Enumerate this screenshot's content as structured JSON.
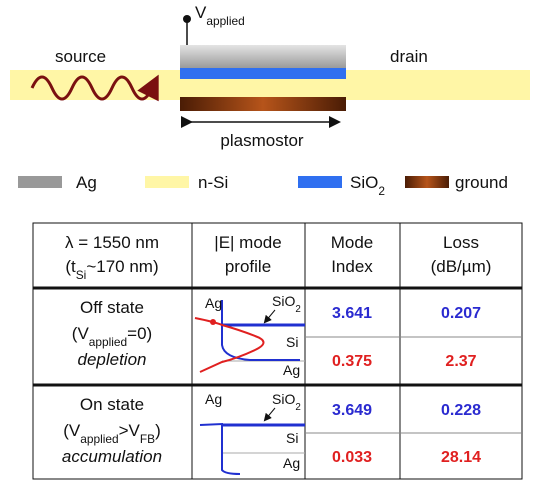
{
  "diagram": {
    "voltage": [
      "V",
      {
        "sub": "applied"
      }
    ],
    "source": "source",
    "drain": "drain",
    "device": "plasmostor"
  },
  "legend": [
    [
      "Ag"
    ],
    [
      "n-Si"
    ],
    [
      "SiO",
      {
        "sub": "2"
      }
    ],
    [
      "ground"
    ]
  ],
  "table": {
    "header": [
      [
        [
          "λ = 1550 nm"
        ],
        [
          "(t",
          {
            "sub": "Si"
          },
          "~170 nm)"
        ]
      ],
      [
        [
          "|E| mode"
        ],
        [
          "profile"
        ]
      ],
      [
        [
          "Mode"
        ],
        [
          "Index"
        ]
      ],
      [
        [
          "Loss"
        ],
        [
          "(dB/µm)"
        ]
      ]
    ],
    "rows": [
      {
        "state": [
          [
            "Off state"
          ],
          [
            "(V",
            {
              "sub": "applied"
            },
            "=0)"
          ],
          [
            "depletion"
          ]
        ],
        "profile_labels": [
          [
            "Ag"
          ],
          [
            "SiO",
            {
              "sub": "2"
            }
          ],
          [
            "Si"
          ],
          [
            "Ag"
          ]
        ],
        "mode_index": [
          3.641,
          0.375
        ],
        "loss": [
          0.207,
          2.37
        ]
      },
      {
        "state": [
          [
            "On state"
          ],
          [
            "(V",
            {
              "sub": "applied"
            },
            ">V",
            {
              "sub": "FB"
            },
            ")"
          ],
          [
            "accumulation"
          ]
        ],
        "profile_labels": [
          [
            "Ag"
          ],
          [
            "SiO",
            {
              "sub": "2"
            }
          ],
          [
            "Si"
          ],
          [
            "Ag"
          ]
        ],
        "mode_index": [
          3.649,
          0.033
        ],
        "loss": [
          0.228,
          28.14
        ]
      }
    ]
  }
}
